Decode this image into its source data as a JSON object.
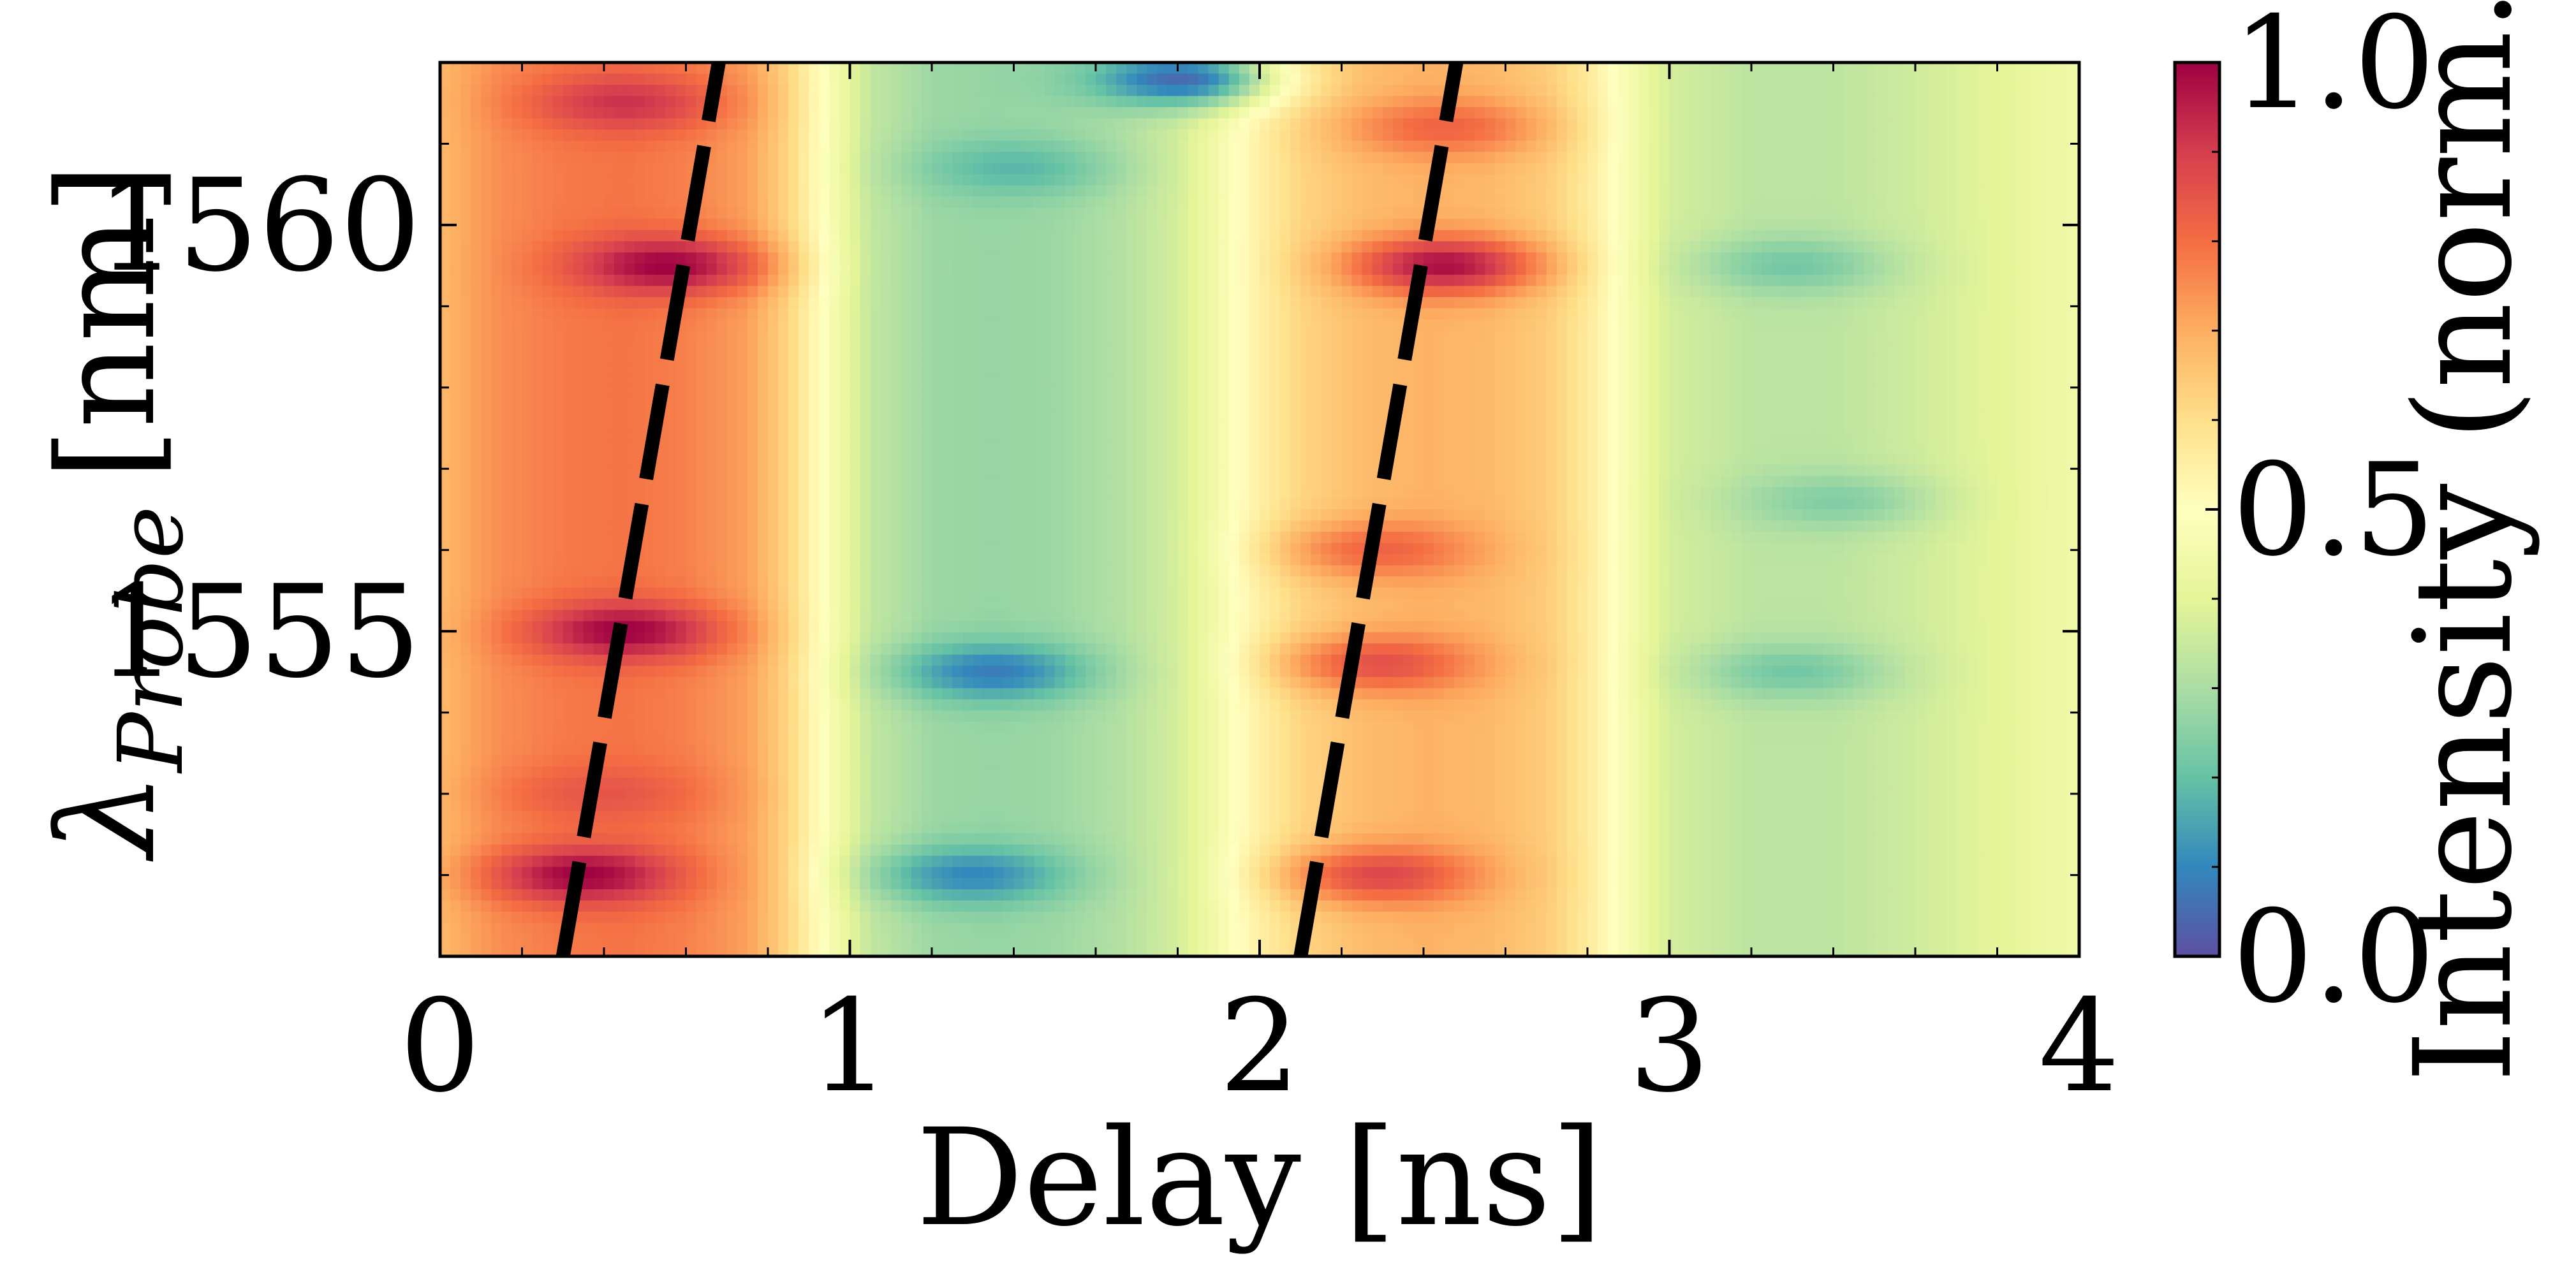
{
  "chart_data": {
    "type": "heatmap",
    "xlabel": "Delay [ns]",
    "ylabel_symbol": "λ",
    "ylabel_subscript": "Probe",
    "ylabel_unit": "[nm]",
    "xlim": [
      0,
      4
    ],
    "ylim": [
      1551,
      1562
    ],
    "x_ticks": [
      0,
      1,
      2,
      3,
      4
    ],
    "x_tick_labels": [
      "0",
      "1",
      "2",
      "3",
      "4"
    ],
    "y_ticks": [
      1555,
      1560
    ],
    "y_tick_labels": [
      "1555",
      "1560"
    ],
    "colorbar": {
      "label": "Intensity (norm.)",
      "range": [
        0.0,
        1.0
      ],
      "ticks": [
        0.0,
        0.5,
        1.0
      ],
      "tick_labels": [
        "0.0",
        "0.5",
        "1.0"
      ],
      "colormap": "Spectral_r",
      "stops": [
        "#5e4fa2",
        "#3288bd",
        "#66c2a5",
        "#abdda4",
        "#e6f598",
        "#ffffbf",
        "#fee08b",
        "#fdae61",
        "#f46d43",
        "#d53e4f",
        "#9e0142"
      ]
    },
    "grid": false,
    "column_profile": {
      "delay_ns": [
        0.0,
        0.15,
        0.3,
        0.45,
        0.6,
        0.75,
        0.85,
        0.95,
        1.05,
        1.2,
        1.35,
        1.5,
        1.65,
        1.8,
        1.9,
        2.0,
        2.1,
        2.25,
        2.4,
        2.55,
        2.7,
        2.8,
        2.9,
        3.0,
        3.2,
        3.4,
        3.6,
        3.8,
        4.0
      ],
      "base_intensity": [
        0.68,
        0.75,
        0.78,
        0.79,
        0.77,
        0.72,
        0.62,
        0.47,
        0.34,
        0.28,
        0.27,
        0.28,
        0.31,
        0.37,
        0.45,
        0.55,
        0.62,
        0.67,
        0.69,
        0.68,
        0.64,
        0.57,
        0.46,
        0.37,
        0.33,
        0.33,
        0.36,
        0.4,
        0.44
      ]
    },
    "features": [
      {
        "delay_ns": 0.45,
        "wavelength_nm": 1561.5,
        "intensity": 0.92
      },
      {
        "delay_ns": 0.55,
        "wavelength_nm": 1559.5,
        "intensity": 1.0
      },
      {
        "delay_ns": 0.45,
        "wavelength_nm": 1555.0,
        "intensity": 1.0
      },
      {
        "delay_ns": 0.35,
        "wavelength_nm": 1552.0,
        "intensity": 1.0
      },
      {
        "delay_ns": 0.4,
        "wavelength_nm": 1553.0,
        "intensity": 0.85
      },
      {
        "delay_ns": 2.45,
        "wavelength_nm": 1559.5,
        "intensity": 0.98
      },
      {
        "delay_ns": 2.45,
        "wavelength_nm": 1561.2,
        "intensity": 0.82
      },
      {
        "delay_ns": 2.3,
        "wavelength_nm": 1556.0,
        "intensity": 0.82
      },
      {
        "delay_ns": 2.3,
        "wavelength_nm": 1554.6,
        "intensity": 0.86
      },
      {
        "delay_ns": 2.3,
        "wavelength_nm": 1552.0,
        "intensity": 0.88
      },
      {
        "delay_ns": 1.35,
        "wavelength_nm": 1554.5,
        "intensity": 0.08
      },
      {
        "delay_ns": 1.3,
        "wavelength_nm": 1552.0,
        "intensity": 0.1
      },
      {
        "delay_ns": 1.8,
        "wavelength_nm": 1561.8,
        "intensity": 0.05
      },
      {
        "delay_ns": 1.4,
        "wavelength_nm": 1560.7,
        "intensity": 0.18
      },
      {
        "delay_ns": 3.3,
        "wavelength_nm": 1554.5,
        "intensity": 0.22
      },
      {
        "delay_ns": 3.3,
        "wavelength_nm": 1559.5,
        "intensity": 0.22
      },
      {
        "delay_ns": 3.4,
        "wavelength_nm": 1556.6,
        "intensity": 0.24
      }
    ],
    "overlay_lines": [
      {
        "style": "dashed",
        "color": "#000000",
        "points": [
          [
            0.3,
            1551.0
          ],
          [
            0.68,
            1562.0
          ]
        ]
      },
      {
        "style": "dashed",
        "color": "#000000",
        "points": [
          [
            2.1,
            1551.0
          ],
          [
            2.48,
            1562.0
          ]
        ]
      }
    ]
  }
}
